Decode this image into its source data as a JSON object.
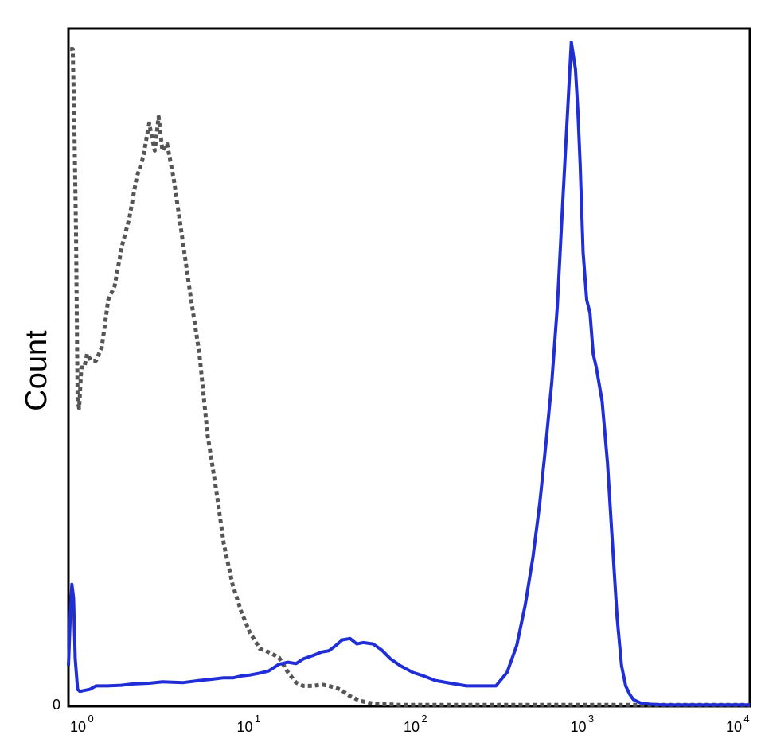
{
  "chart_data": {
    "type": "line",
    "xscale": "log",
    "xlim": [
      0.82,
      10000
    ],
    "ylim": [
      0,
      1.0
    ],
    "grid": false,
    "legend": "none",
    "ylabel": "Count",
    "y_ticks": [
      {
        "value": 0,
        "label": "0"
      }
    ],
    "x_ticks": [
      {
        "value": 1,
        "base": "10",
        "exp": "0"
      },
      {
        "value": 10,
        "base": "10",
        "exp": "1"
      },
      {
        "value": 100,
        "base": "10",
        "exp": "2"
      },
      {
        "value": 1000,
        "base": "10",
        "exp": "3"
      },
      {
        "value": 10000,
        "base": "10",
        "exp": "4"
      }
    ],
    "series": [
      {
        "style": "dotted",
        "color": "#555555",
        "x": [
          0.84,
          0.87,
          0.89,
          0.91,
          0.93,
          0.95,
          0.98,
          1.02,
          1.06,
          1.12,
          1.2,
          1.3,
          1.42,
          1.55,
          1.72,
          1.9,
          2.1,
          2.3,
          2.5,
          2.7,
          2.85,
          3.0,
          3.2,
          3.5,
          3.9,
          4.4,
          5.0,
          5.6,
          6.3,
          7.0,
          7.9,
          8.9,
          10.0,
          11.5,
          13.0,
          15.0,
          17.0,
          19.0,
          21.0,
          24.0,
          27.0,
          30.0,
          35.0,
          40.0,
          46.0,
          55.0,
          65.0,
          80.0,
          100.0,
          130.0,
          200.0,
          400.0,
          1000.0,
          3000.0,
          10000.0
        ],
        "y": [
          0.97,
          0.97,
          0.85,
          0.7,
          0.45,
          0.44,
          0.5,
          0.5,
          0.52,
          0.51,
          0.51,
          0.53,
          0.6,
          0.62,
          0.68,
          0.72,
          0.78,
          0.81,
          0.86,
          0.82,
          0.87,
          0.82,
          0.83,
          0.78,
          0.7,
          0.61,
          0.52,
          0.4,
          0.32,
          0.24,
          0.18,
          0.14,
          0.11,
          0.085,
          0.08,
          0.072,
          0.05,
          0.035,
          0.03,
          0.03,
          0.032,
          0.03,
          0.025,
          0.015,
          0.008,
          0.004,
          0.003,
          0.002,
          0.002,
          0.002,
          0.002,
          0.002,
          0.002,
          0.002,
          0.002
        ]
      },
      {
        "style": "solid",
        "color": "#1f2ed6",
        "x": [
          0.82,
          0.84,
          0.86,
          0.88,
          0.9,
          0.93,
          0.96,
          1.0,
          1.1,
          1.2,
          1.4,
          1.7,
          2.0,
          2.5,
          3.0,
          4.0,
          5.0,
          6.0,
          7.0,
          8.0,
          9.0,
          10.0,
          11.5,
          13.0,
          15.0,
          17.0,
          19.0,
          21.0,
          24.0,
          27.0,
          30.0,
          33.0,
          36.0,
          40.0,
          44.0,
          48.0,
          55.0,
          62.0,
          70.0,
          80.0,
          95.0,
          110.0,
          130.0,
          160.0,
          200.0,
          250.0,
          300.0,
          350.0,
          400.0,
          450.0,
          500.0,
          550.0,
          600.0,
          650.0,
          700.0,
          750.0,
          800.0,
          850.0,
          900.0,
          930.0,
          960.0,
          1000.0,
          1050.0,
          1100.0,
          1150.0,
          1200.0,
          1300.0,
          1400.0,
          1500.0,
          1600.0,
          1700.0,
          1800.0,
          1900.0,
          2000.0,
          2200.0,
          2500.0,
          3000.0,
          5000.0,
          10000.0
        ],
        "y": [
          0.06,
          0.13,
          0.18,
          0.16,
          0.07,
          0.025,
          0.022,
          0.023,
          0.025,
          0.03,
          0.03,
          0.031,
          0.033,
          0.034,
          0.036,
          0.035,
          0.038,
          0.04,
          0.042,
          0.042,
          0.045,
          0.046,
          0.049,
          0.052,
          0.062,
          0.065,
          0.063,
          0.07,
          0.075,
          0.08,
          0.082,
          0.09,
          0.098,
          0.1,
          0.092,
          0.094,
          0.092,
          0.083,
          0.07,
          0.06,
          0.05,
          0.045,
          0.038,
          0.034,
          0.03,
          0.03,
          0.03,
          0.05,
          0.09,
          0.15,
          0.22,
          0.3,
          0.39,
          0.48,
          0.59,
          0.73,
          0.86,
          0.98,
          0.94,
          0.88,
          0.8,
          0.67,
          0.6,
          0.58,
          0.52,
          0.5,
          0.45,
          0.36,
          0.24,
          0.13,
          0.06,
          0.03,
          0.018,
          0.01,
          0.005,
          0.003,
          0.002,
          0.002,
          0.002
        ]
      }
    ]
  }
}
